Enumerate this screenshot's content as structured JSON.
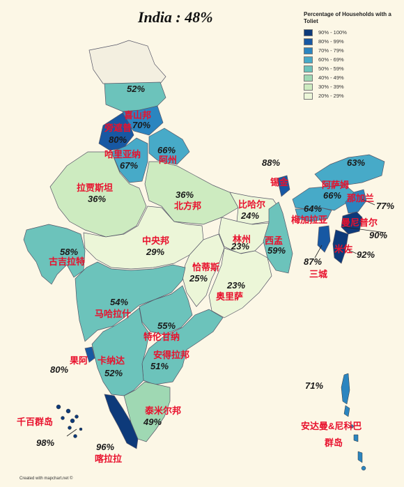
{
  "title": "India : 48%",
  "legend": {
    "title": "Percentage of Households with a Toliet",
    "items": [
      {
        "label": "90% - 100%",
        "color": "#0d3a7a"
      },
      {
        "label": "80% - 99%",
        "color": "#1758a3"
      },
      {
        "label": "70% - 79%",
        "color": "#2b85c0"
      },
      {
        "label": "60% - 69%",
        "color": "#47aac8"
      },
      {
        "label": "50% - 59%",
        "color": "#6cc3bb"
      },
      {
        "label": "40% - 49%",
        "color": "#9fd8b3"
      },
      {
        "label": "30% - 39%",
        "color": "#cdebc0"
      },
      {
        "label": "20% - 29%",
        "color": "#ecf6d8"
      }
    ]
  },
  "regions": [
    {
      "id": "jk",
      "pct": "52%"
    },
    {
      "id": "hp",
      "name": "喜山邦",
      "pct": "70%"
    },
    {
      "id": "pb",
      "name": "旁遮普",
      "pct": "80%"
    },
    {
      "id": "hr",
      "name": "哈里亚纳",
      "pct": "67%"
    },
    {
      "id": "uk",
      "name": "阿州",
      "pct": "66%"
    },
    {
      "id": "rj",
      "name": "拉贾斯坦",
      "pct": "36%"
    },
    {
      "id": "up",
      "name": "北方邦",
      "pct": "36%"
    },
    {
      "id": "br",
      "name": "比哈尔",
      "pct": "24%"
    },
    {
      "id": "sk",
      "name": "锡金",
      "pct": "88%"
    },
    {
      "id": "ar",
      "pct": "63%"
    },
    {
      "id": "as",
      "name": "阿萨姆",
      "pct": "66%"
    },
    {
      "id": "nl",
      "name": "那加兰",
      "pct": "77%"
    },
    {
      "id": "ml",
      "name": "梅加拉亚",
      "pct": "64%"
    },
    {
      "id": "mn",
      "name": "曼尼普尔",
      "pct": "90%"
    },
    {
      "id": "mz",
      "name": "米佐",
      "pct": "92%"
    },
    {
      "id": "tr",
      "name": "三城",
      "pct": "87%"
    },
    {
      "id": "mp",
      "name": "中央邦",
      "pct": "29%"
    },
    {
      "id": "jh",
      "name": "林州",
      "pct": "23%"
    },
    {
      "id": "wb",
      "name": "西孟",
      "pct": "59%"
    },
    {
      "id": "gj",
      "name": "古吉拉特",
      "pct": "58%"
    },
    {
      "id": "cg",
      "name": "恰蒂斯",
      "pct": "25%"
    },
    {
      "id": "od",
      "name": "奥里萨",
      "pct": "23%"
    },
    {
      "id": "mh",
      "name": "马哈拉什",
      "pct": "54%"
    },
    {
      "id": "tg",
      "name": "特伦甘纳",
      "pct": "55%"
    },
    {
      "id": "ap",
      "name": "安得拉邦",
      "pct": "51%"
    },
    {
      "id": "ga",
      "name": "果阿",
      "pct": "80%"
    },
    {
      "id": "ka",
      "name": "卡纳达",
      "pct": "52%"
    },
    {
      "id": "kl",
      "name": "喀拉拉",
      "pct": "96%"
    },
    {
      "id": "tn",
      "name": "泰米尔邦",
      "pct": "49%"
    },
    {
      "id": "ld",
      "name": "千百群岛",
      "pct": "98%"
    },
    {
      "id": "an",
      "name": "安达曼&尼科巴群岛",
      "name_line1": "安达曼&尼科巴",
      "name_line2": "群岛",
      "pct": "71%"
    }
  ],
  "credit": "Created with mapchart.net ©"
}
